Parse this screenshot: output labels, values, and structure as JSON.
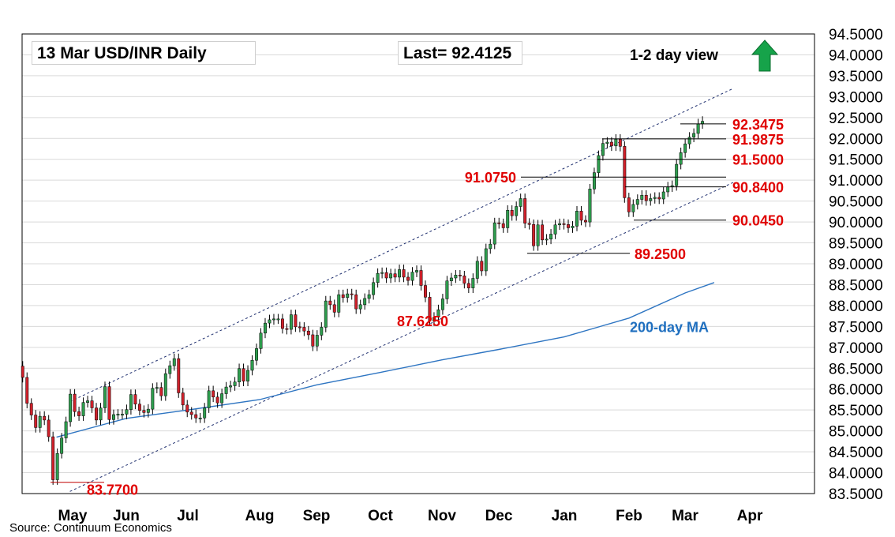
{
  "header": {
    "title": "13 Mar  USD/INR  Daily",
    "last": "Last= 92.4125",
    "view": "1-2 day view",
    "view_direction": "up",
    "source": "Source: Continuum Economics"
  },
  "colors": {
    "up_candle": "#2e9e4e",
    "down_candle": "#d0202a",
    "level_text": "#e00000",
    "level_line": "#c00000",
    "ma": "#2e75c2",
    "ma_label": "#1f6fbf",
    "channel": "#1f2f6f",
    "arrow": "#16a34a",
    "grid": "#d9d9d9"
  },
  "chart_data": {
    "type": "candlestick",
    "title": "13 Mar  USD/INR  Daily",
    "ylim": [
      83.5,
      94.5
    ],
    "y_ticks": [
      "83.5000",
      "84.0000",
      "84.5000",
      "85.0000",
      "85.5000",
      "86.0000",
      "86.5000",
      "87.0000",
      "87.5000",
      "88.0000",
      "88.5000",
      "89.0000",
      "89.5000",
      "90.0000",
      "90.5000",
      "91.0000",
      "91.5000",
      "92.0000",
      "92.5000",
      "93.0000",
      "93.5000",
      "94.0000",
      "94.5000"
    ],
    "x_months": [
      "May",
      "Jun",
      "Jul",
      "Aug",
      "Sep",
      "Oct",
      "Nov",
      "Dec",
      "Jan",
      "Feb",
      "Mar",
      "Apr"
    ],
    "grid": true,
    "last": 92.4125,
    "levels": [
      {
        "label": "92.3475",
        "value": 92.3475
      },
      {
        "label": "91.9875",
        "value": 91.9875
      },
      {
        "label": "91.5000",
        "value": 91.5
      },
      {
        "label": "91.0750",
        "value": 91.075
      },
      {
        "label": "90.8400",
        "value": 90.84
      },
      {
        "label": "90.0450",
        "value": 90.045
      },
      {
        "label": "89.2500",
        "value": 89.25
      },
      {
        "label": "87.6250",
        "value": 87.625
      },
      {
        "label": "83.7700",
        "value": 83.77
      }
    ],
    "ma_label": "200-day MA",
    "ma_200": [
      {
        "month_index": -0.3,
        "value": 84.85
      },
      {
        "month_index": 1.0,
        "value": 85.3
      },
      {
        "month_index": 2.0,
        "value": 85.5
      },
      {
        "month_index": 3.0,
        "value": 85.75
      },
      {
        "month_index": 4.0,
        "value": 86.1
      },
      {
        "month_index": 5.0,
        "value": 86.4
      },
      {
        "month_index": 6.0,
        "value": 86.7
      },
      {
        "month_index": 7.0,
        "value": 86.95
      },
      {
        "month_index": 8.0,
        "value": 87.25
      },
      {
        "month_index": 9.0,
        "value": 87.7
      },
      {
        "month_index": 10.0,
        "value": 88.3
      },
      {
        "month_index": 10.45,
        "value": 88.55
      }
    ],
    "channel_upper": [
      {
        "month_index": -0.05,
        "value": 85.7
      },
      {
        "month_index": 10.75,
        "value": 93.2
      }
    ],
    "channel_lower": [
      {
        "month_index": -0.05,
        "value": 83.55
      },
      {
        "month_index": 10.75,
        "value": 90.95
      }
    ],
    "candles_close": [
      86.28,
      85.66,
      85.38,
      85.08,
      85.35,
      85.26,
      84.86,
      83.83,
      84.46,
      84.83,
      85.22,
      85.88,
      85.46,
      85.36,
      85.68,
      85.72,
      85.55,
      85.26,
      85.55,
      86.06,
      85.27,
      85.39,
      85.4,
      85.4,
      85.51,
      85.87,
      85.64,
      85.49,
      85.44,
      85.52,
      86.02,
      86.04,
      85.84,
      86.37,
      86.56,
      86.73,
      85.91,
      85.62,
      85.45,
      85.39,
      85.31,
      85.31,
      85.55,
      85.96,
      85.81,
      85.67,
      85.89,
      86.05,
      86.08,
      86.17,
      86.49,
      86.19,
      86.45,
      86.69,
      86.97,
      87.34,
      87.58,
      87.66,
      87.68,
      87.68,
      87.45,
      87.43,
      87.78,
      87.49,
      87.48,
      87.39,
      87.3,
      87.03,
      87.29,
      87.48,
      88.11,
      88.02,
      87.84,
      88.26,
      88.19,
      88.28,
      88.26,
      87.92,
      88.02,
      88.17,
      88.26,
      88.55,
      88.77,
      88.79,
      88.66,
      88.76,
      88.68,
      88.86,
      88.68,
      88.6,
      88.8,
      88.84,
      88.48,
      88.2,
      87.63,
      87.72,
      87.9,
      88.16,
      88.59,
      88.66,
      88.73,
      88.71,
      88.53,
      88.42,
      88.65,
      89.06,
      88.83,
      89.36,
      89.47,
      89.98,
      89.96,
      89.86,
      90.28,
      90.15,
      90.37,
      90.56,
      89.97,
      89.94,
      89.43,
      89.93,
      89.57,
      89.59,
      89.71,
      89.93,
      89.96,
      89.94,
      89.86,
      89.9,
      90.26,
      90.04,
      90.0,
      90.79,
      91.18,
      91.59,
      91.88,
      91.91,
      91.82,
      91.98,
      91.81,
      90.58,
      90.24,
      90.42,
      90.54,
      90.64,
      90.51,
      90.56,
      90.59,
      90.55,
      90.72,
      90.84,
      90.87,
      91.38,
      91.66,
      91.87,
      92.03,
      92.12,
      92.35,
      92.41
    ]
  }
}
